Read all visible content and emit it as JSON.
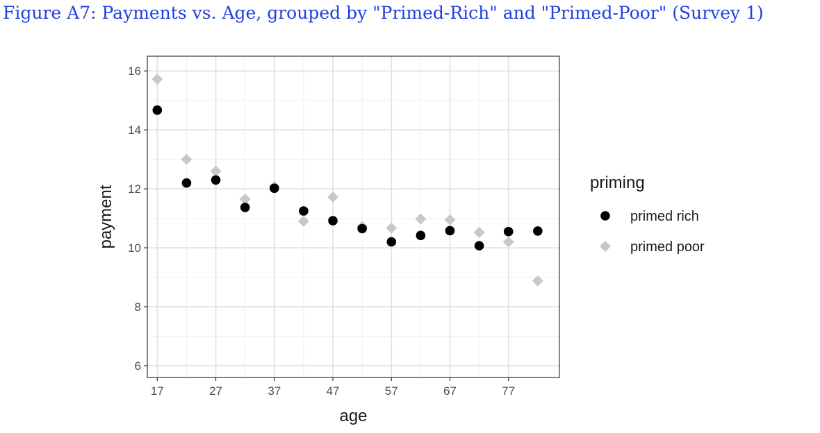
{
  "caption": "Figure A7: Payments vs. Age, grouped by \"Primed-Rich\" and \"Primed-Poor\" (Survey 1)",
  "chart_data": {
    "type": "scatter",
    "title": "",
    "xlabel": "age",
    "ylabel": "payment",
    "xlim": [
      15.3,
      85.7
    ],
    "ylim": [
      5.6,
      16.5
    ],
    "x_ticks": [
      17,
      27,
      37,
      47,
      57,
      67,
      77
    ],
    "y_ticks": [
      6,
      8,
      10,
      12,
      14,
      16
    ],
    "grid": true,
    "legend": {
      "title": "priming",
      "position": "right"
    },
    "x": [
      17,
      22,
      27,
      32,
      37,
      42,
      47,
      52,
      57,
      62,
      67,
      72,
      77,
      82
    ],
    "series": [
      {
        "name": "primed rich",
        "marker": "circle",
        "color": "#000000",
        "values": [
          14.67,
          12.2,
          12.3,
          11.37,
          12.02,
          11.25,
          10.92,
          10.65,
          10.2,
          10.42,
          10.58,
          10.07,
          10.55,
          10.57
        ]
      },
      {
        "name": "primed poor",
        "marker": "diamond",
        "color": "#c8c8c8",
        "values": [
          15.72,
          13.0,
          12.6,
          11.65,
          12.08,
          10.9,
          11.72,
          10.72,
          10.67,
          10.98,
          10.95,
          10.52,
          10.2,
          8.88
        ]
      }
    ]
  }
}
